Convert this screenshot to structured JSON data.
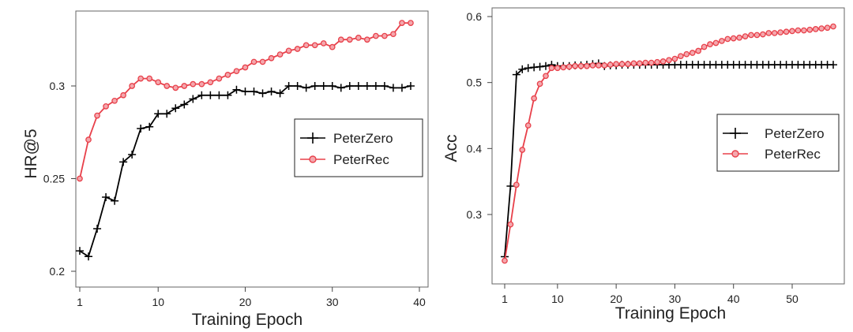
{
  "chart_data": [
    {
      "type": "line",
      "xlabel": "Training Epoch",
      "ylabel": "HR@5",
      "xlim": [
        1,
        40
      ],
      "ylim": [
        0.2,
        0.335
      ],
      "xticks": [
        1,
        10,
        20,
        30,
        40
      ],
      "yticks": [
        0.2,
        0.25,
        0.3
      ],
      "ytick_labels": [
        "0.2",
        "0.25",
        "0.3"
      ],
      "grid": false,
      "legend_position": "right",
      "x": [
        1,
        2,
        3,
        4,
        5,
        6,
        7,
        8,
        9,
        10,
        11,
        12,
        13,
        14,
        15,
        16,
        17,
        18,
        19,
        20,
        21,
        22,
        23,
        24,
        25,
        26,
        27,
        28,
        29,
        30,
        31,
        32,
        33,
        34,
        35,
        36,
        37,
        38,
        39
      ],
      "series": [
        {
          "name": "PeterZero",
          "color": "#000000",
          "marker": "plus",
          "values": [
            0.211,
            0.208,
            0.223,
            0.24,
            0.238,
            0.259,
            0.263,
            0.277,
            0.278,
            0.285,
            0.285,
            0.288,
            0.29,
            0.293,
            0.295,
            0.295,
            0.295,
            0.295,
            0.298,
            0.297,
            0.297,
            0.296,
            0.297,
            0.296,
            0.3,
            0.3,
            0.299,
            0.3,
            0.3,
            0.3,
            0.299,
            0.3,
            0.3,
            0.3,
            0.3,
            0.3,
            0.299,
            0.299,
            0.3
          ]
        },
        {
          "name": "PeterRec",
          "color": "#e8404a",
          "marker": "circle",
          "values": [
            0.25,
            0.271,
            0.284,
            0.289,
            0.292,
            0.295,
            0.3,
            0.304,
            0.304,
            0.302,
            0.3,
            0.299,
            0.3,
            0.301,
            0.301,
            0.302,
            0.304,
            0.306,
            0.308,
            0.31,
            0.313,
            0.313,
            0.315,
            0.317,
            0.319,
            0.32,
            0.322,
            0.322,
            0.323,
            0.321,
            0.325,
            0.325,
            0.326,
            0.325,
            0.327,
            0.327,
            0.328,
            0.334,
            0.334
          ]
        }
      ]
    },
    {
      "type": "line",
      "xlabel": "Training Epoch",
      "ylabel": "Acc",
      "xlim": [
        1,
        57
      ],
      "ylim": [
        0.22,
        0.61
      ],
      "xticks": [
        1,
        10,
        20,
        30,
        40,
        50
      ],
      "yticks": [
        0.3,
        0.4,
        0.5,
        0.6
      ],
      "ytick_labels": [
        "0.3",
        "0.4",
        "0.5",
        "0.6"
      ],
      "grid": false,
      "legend_position": "right",
      "x": [
        1,
        2,
        3,
        4,
        5,
        6,
        7,
        8,
        9,
        10,
        11,
        12,
        13,
        14,
        15,
        16,
        17,
        18,
        19,
        20,
        21,
        22,
        23,
        24,
        25,
        26,
        27,
        28,
        29,
        30,
        31,
        32,
        33,
        34,
        35,
        36,
        37,
        38,
        39,
        40,
        41,
        42,
        43,
        44,
        45,
        46,
        47,
        48,
        49,
        50,
        51,
        52,
        53,
        54,
        55,
        56,
        57
      ],
      "series": [
        {
          "name": "PeterZero",
          "color": "#000000",
          "marker": "plus",
          "values": [
            0.236,
            0.343,
            0.512,
            0.52,
            0.522,
            0.523,
            0.524,
            0.525,
            0.527,
            0.525,
            0.525,
            0.525,
            0.526,
            0.526,
            0.527,
            0.528,
            0.529,
            0.525,
            0.526,
            0.526,
            0.527,
            0.527,
            0.527,
            0.527,
            0.527,
            0.527,
            0.527,
            0.527,
            0.527,
            0.527,
            0.527,
            0.527,
            0.527,
            0.527,
            0.527,
            0.527,
            0.527,
            0.527,
            0.527,
            0.527,
            0.527,
            0.527,
            0.527,
            0.527,
            0.527,
            0.527,
            0.527,
            0.527,
            0.527,
            0.527,
            0.527,
            0.527,
            0.527,
            0.527,
            0.527,
            0.527,
            0.527
          ]
        },
        {
          "name": "PeterRec",
          "color": "#e8404a",
          "marker": "circle",
          "values": [
            0.23,
            0.285,
            0.345,
            0.398,
            0.435,
            0.476,
            0.498,
            0.51,
            0.522,
            0.522,
            0.523,
            0.524,
            0.525,
            0.525,
            0.525,
            0.526,
            0.526,
            0.526,
            0.527,
            0.528,
            0.528,
            0.528,
            0.529,
            0.529,
            0.53,
            0.53,
            0.531,
            0.532,
            0.534,
            0.536,
            0.54,
            0.543,
            0.545,
            0.548,
            0.554,
            0.558,
            0.56,
            0.563,
            0.566,
            0.567,
            0.568,
            0.57,
            0.572,
            0.572,
            0.573,
            0.575,
            0.575,
            0.576,
            0.577,
            0.578,
            0.579,
            0.579,
            0.58,
            0.581,
            0.582,
            0.583,
            0.585
          ]
        }
      ]
    }
  ]
}
